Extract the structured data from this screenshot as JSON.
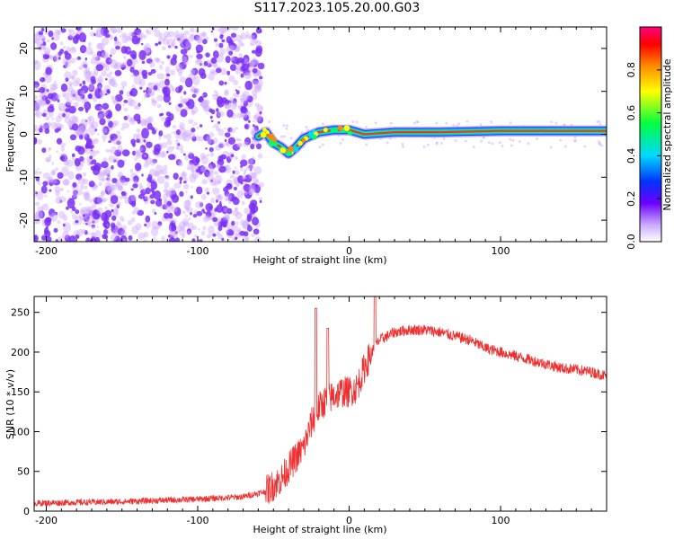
{
  "title": "S117.2023.105.20.00.G03",
  "colors": {
    "snr_line": "#ee3030",
    "scatter": "#7b2ff7",
    "scatter_light": "#cfa8ff"
  },
  "chart_data": [
    {
      "type": "heatmap",
      "xlabel": "Height of straight line (km)",
      "ylabel": "Frequency (Hz)",
      "xlim": [
        -208,
        170
      ],
      "ylim": [
        -25,
        25
      ],
      "x_ticks": [
        -200,
        -100,
        0,
        100
      ],
      "x_tick_labels": [
        "-200",
        "-100",
        "0",
        "100"
      ],
      "y_ticks": [
        20,
        10,
        0,
        -10,
        -20
      ],
      "y_tick_labels": [
        "20",
        "10",
        "0",
        "-10",
        "-20"
      ],
      "colorbar": {
        "label": "Normalized spectral amplitude",
        "range": [
          0,
          1
        ],
        "ticks": [
          0.0,
          0.2,
          0.4,
          0.6,
          0.8
        ],
        "tick_labels": [
          "0.0",
          "0.2",
          "0.4",
          "0.6",
          "0.8"
        ]
      },
      "trace": [
        {
          "x": -60,
          "y": -0.5
        },
        {
          "x": -55,
          "y": 0.5
        },
        {
          "x": -50,
          "y": -2
        },
        {
          "x": -45,
          "y": -3
        },
        {
          "x": -40,
          "y": -4.5
        },
        {
          "x": -35,
          "y": -3
        },
        {
          "x": -30,
          "y": -1
        },
        {
          "x": -20,
          "y": 0.5
        },
        {
          "x": -10,
          "y": 1
        },
        {
          "x": 0,
          "y": 1
        },
        {
          "x": 10,
          "y": 0
        },
        {
          "x": 30,
          "y": 0.5
        },
        {
          "x": 60,
          "y": 0.5
        },
        {
          "x": 100,
          "y": 0.8
        },
        {
          "x": 140,
          "y": 0.8
        },
        {
          "x": 170,
          "y": 0.8
        }
      ]
    },
    {
      "type": "line",
      "xlabel": "Height of straight line (km)",
      "ylabel": "SNR (10 * v/v)",
      "xlim": [
        -208,
        170
      ],
      "ylim": [
        0,
        270
      ],
      "x_ticks": [
        -200,
        -100,
        0,
        100
      ],
      "x_tick_labels": [
        "-200",
        "-100",
        "0",
        "100"
      ],
      "y_ticks": [
        0,
        50,
        100,
        150,
        200,
        250
      ],
      "y_tick_labels": [
        "0",
        "50",
        "100",
        "150",
        "200",
        "250"
      ],
      "series": [
        {
          "x": [
            -208,
            -150,
            -100,
            -70,
            -55,
            -45,
            -38,
            -30,
            -25,
            -20,
            -15,
            -10,
            -5,
            0,
            5,
            10,
            15,
            20,
            30,
            40,
            50,
            60,
            70,
            80,
            90,
            100,
            110,
            120,
            130,
            140,
            150,
            160,
            170
          ],
          "values": [
            10,
            12,
            15,
            18,
            25,
            40,
            60,
            80,
            110,
            130,
            140,
            145,
            150,
            150,
            155,
            180,
            200,
            215,
            225,
            228,
            228,
            225,
            220,
            215,
            205,
            200,
            195,
            190,
            185,
            180,
            178,
            175,
            170
          ]
        }
      ]
    }
  ]
}
